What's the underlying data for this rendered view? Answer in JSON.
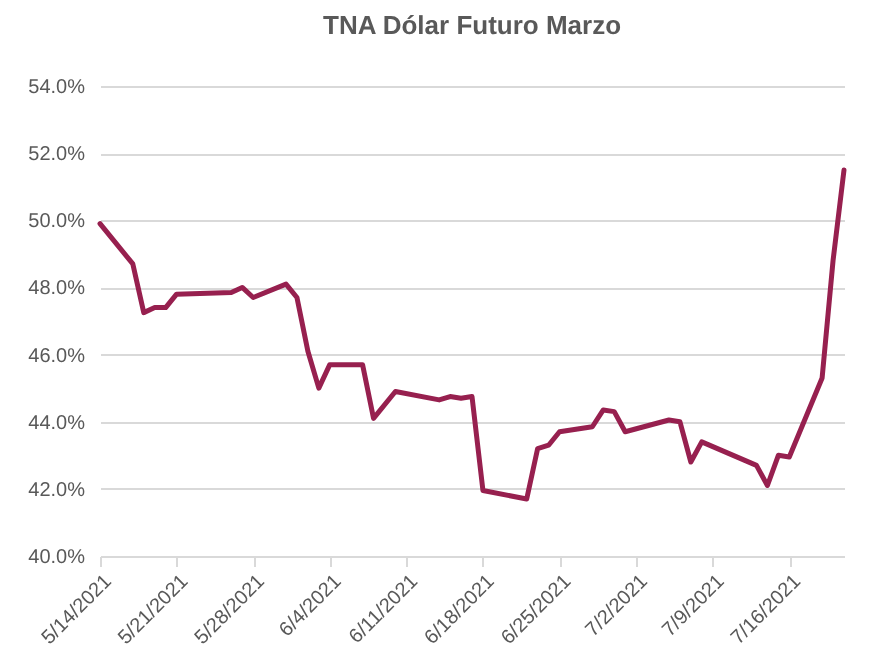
{
  "chart_data": {
    "type": "line",
    "title": "TNA Dólar Futuro Marzo",
    "x": [
      "2021-05-14",
      "2021-05-17",
      "2021-05-18",
      "2021-05-19",
      "2021-05-20",
      "2021-05-21",
      "2021-05-26",
      "2021-05-27",
      "2021-05-28",
      "2021-05-31",
      "2021-06-01",
      "2021-06-02",
      "2021-06-03",
      "2021-06-04",
      "2021-06-07",
      "2021-06-08",
      "2021-06-10",
      "2021-06-14",
      "2021-06-15",
      "2021-06-16",
      "2021-06-17",
      "2021-06-18",
      "2021-06-22",
      "2021-06-23",
      "2021-06-24",
      "2021-06-25",
      "2021-06-28",
      "2021-06-29",
      "2021-06-30",
      "2021-07-01",
      "2021-07-05",
      "2021-07-06",
      "2021-07-07",
      "2021-07-08",
      "2021-07-13",
      "2021-07-14",
      "2021-07-15",
      "2021-07-16",
      "2021-07-19",
      "2021-07-20",
      "2021-07-21"
    ],
    "series": [
      {
        "color": "#97204f",
        "values": [
          49.9,
          48.7,
          47.25,
          47.4,
          47.4,
          47.8,
          47.85,
          48.0,
          47.7,
          48.1,
          47.7,
          46.1,
          45.0,
          45.7,
          45.7,
          44.1,
          44.9,
          44.65,
          44.75,
          44.7,
          44.75,
          41.95,
          41.7,
          43.2,
          43.3,
          43.7,
          43.85,
          44.35,
          44.3,
          43.7,
          44.05,
          44.0,
          42.8,
          43.4,
          42.7,
          42.1,
          43.0,
          42.95,
          45.3,
          48.8,
          51.5
        ]
      }
    ],
    "xlim": [
      "2021-05-14",
      "2021-07-21"
    ],
    "xticks": [
      {
        "value": "2021-05-14",
        "label": "5/14/2021"
      },
      {
        "value": "2021-05-21",
        "label": "5/21/2021"
      },
      {
        "value": "2021-05-28",
        "label": "5/28/2021"
      },
      {
        "value": "2021-06-04",
        "label": "6/4/2021"
      },
      {
        "value": "2021-06-11",
        "label": "6/11/2021"
      },
      {
        "value": "2021-06-18",
        "label": "6/18/2021"
      },
      {
        "value": "2021-06-25",
        "label": "6/25/2021"
      },
      {
        "value": "2021-07-02",
        "label": "7/2/2021"
      },
      {
        "value": "2021-07-09",
        "label": "7/9/2021"
      },
      {
        "value": "2021-07-16",
        "label": "7/16/2021"
      }
    ],
    "ylim": [
      40,
      54
    ],
    "yticks": [
      {
        "value": 40,
        "label": "40.0%"
      },
      {
        "value": 42,
        "label": "42.0%"
      },
      {
        "value": 44,
        "label": "44.0%"
      },
      {
        "value": 46,
        "label": "46.0%"
      },
      {
        "value": 48,
        "label": "48.0%"
      },
      {
        "value": 50,
        "label": "50.0%"
      },
      {
        "value": 52,
        "label": "52.0%"
      },
      {
        "value": 54,
        "label": "54.0%"
      }
    ],
    "grid": "y",
    "marker": "none",
    "line_style": "solid"
  }
}
